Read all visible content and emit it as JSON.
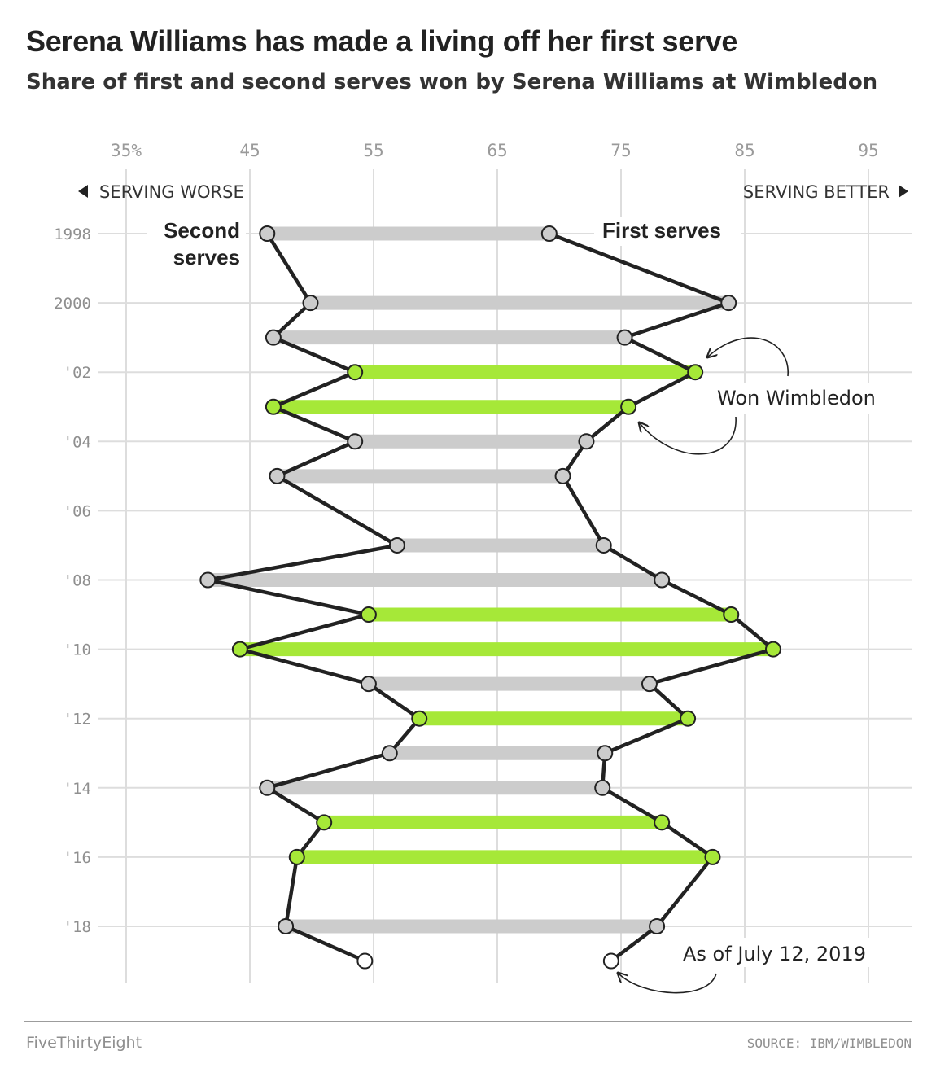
{
  "title": "Serena Williams has made a living off her first serve",
  "subtitle": "Share of first and second serves won by Serena Williams at Wimbledon",
  "direction": {
    "left": "SERVING WORSE",
    "right": "SERVING BETTER"
  },
  "labels": {
    "second_line1": "Second",
    "second_line2": "serves",
    "first": "First serves"
  },
  "annotations": {
    "won": "Won Wimbledon",
    "as_of": "As of July 12, 2019"
  },
  "footer": {
    "brand": "FiveThirtyEight",
    "source": "SOURCE: IBM/WIMBLEDON"
  },
  "colors": {
    "won": "#a6e838",
    "not_won": "#cccccc",
    "line": "#222222",
    "grid": "#dddddd",
    "current": "#ffffff"
  },
  "chart_data": {
    "type": "dumbbell",
    "title": "Serena Williams has made a living off her first serve",
    "x_ticks": [
      {
        "value": 35,
        "label": "35%"
      },
      {
        "value": 45,
        "label": "45"
      },
      {
        "value": 55,
        "label": "55"
      },
      {
        "value": 65,
        "label": "65"
      },
      {
        "value": 75,
        "label": "75"
      },
      {
        "value": 85,
        "label": "85"
      },
      {
        "value": 95,
        "label": "95"
      }
    ],
    "y_ticks": [
      {
        "year": 1998,
        "label": "1998"
      },
      {
        "year": 2000,
        "label": "2000"
      },
      {
        "year": 2002,
        "label": "'02"
      },
      {
        "year": 2004,
        "label": "'04"
      },
      {
        "year": 2006,
        "label": "'06"
      },
      {
        "year": 2008,
        "label": "'08"
      },
      {
        "year": 2010,
        "label": "'10"
      },
      {
        "year": 2012,
        "label": "'12"
      },
      {
        "year": 2014,
        "label": "'14"
      },
      {
        "year": 2016,
        "label": "'16"
      },
      {
        "year": 2018,
        "label": "'18"
      }
    ],
    "xlim": [
      35,
      98
    ],
    "rows": [
      {
        "year": 1998,
        "second": 46.4,
        "first": 69.2,
        "won": false
      },
      {
        "year": 2000,
        "second": 49.9,
        "first": 83.7,
        "won": false
      },
      {
        "year": 2001,
        "second": 46.9,
        "first": 75.3,
        "won": false
      },
      {
        "year": 2002,
        "second": 53.5,
        "first": 81.0,
        "won": true
      },
      {
        "year": 2003,
        "second": 46.9,
        "first": 75.6,
        "won": true
      },
      {
        "year": 2004,
        "second": 53.5,
        "first": 72.2,
        "won": false
      },
      {
        "year": 2005,
        "second": 47.2,
        "first": 70.3,
        "won": false
      },
      {
        "year": 2007,
        "second": 56.9,
        "first": 73.6,
        "won": false
      },
      {
        "year": 2008,
        "second": 41.6,
        "first": 78.3,
        "won": false
      },
      {
        "year": 2009,
        "second": 54.6,
        "first": 83.9,
        "won": true
      },
      {
        "year": 2010,
        "second": 44.2,
        "first": 87.3,
        "won": true
      },
      {
        "year": 2011,
        "second": 54.6,
        "first": 77.3,
        "won": false
      },
      {
        "year": 2012,
        "second": 58.7,
        "first": 80.4,
        "won": true
      },
      {
        "year": 2013,
        "second": 56.3,
        "first": 73.7,
        "won": false
      },
      {
        "year": 2014,
        "second": 46.4,
        "first": 73.5,
        "won": false
      },
      {
        "year": 2015,
        "second": 51.0,
        "first": 78.3,
        "won": true
      },
      {
        "year": 2016,
        "second": 48.8,
        "first": 82.4,
        "won": true
      },
      {
        "year": 2018,
        "second": 47.9,
        "first": 77.9,
        "won": false
      },
      {
        "year": 2019,
        "second": 54.3,
        "first": 74.2,
        "won": false,
        "current": true
      }
    ]
  }
}
